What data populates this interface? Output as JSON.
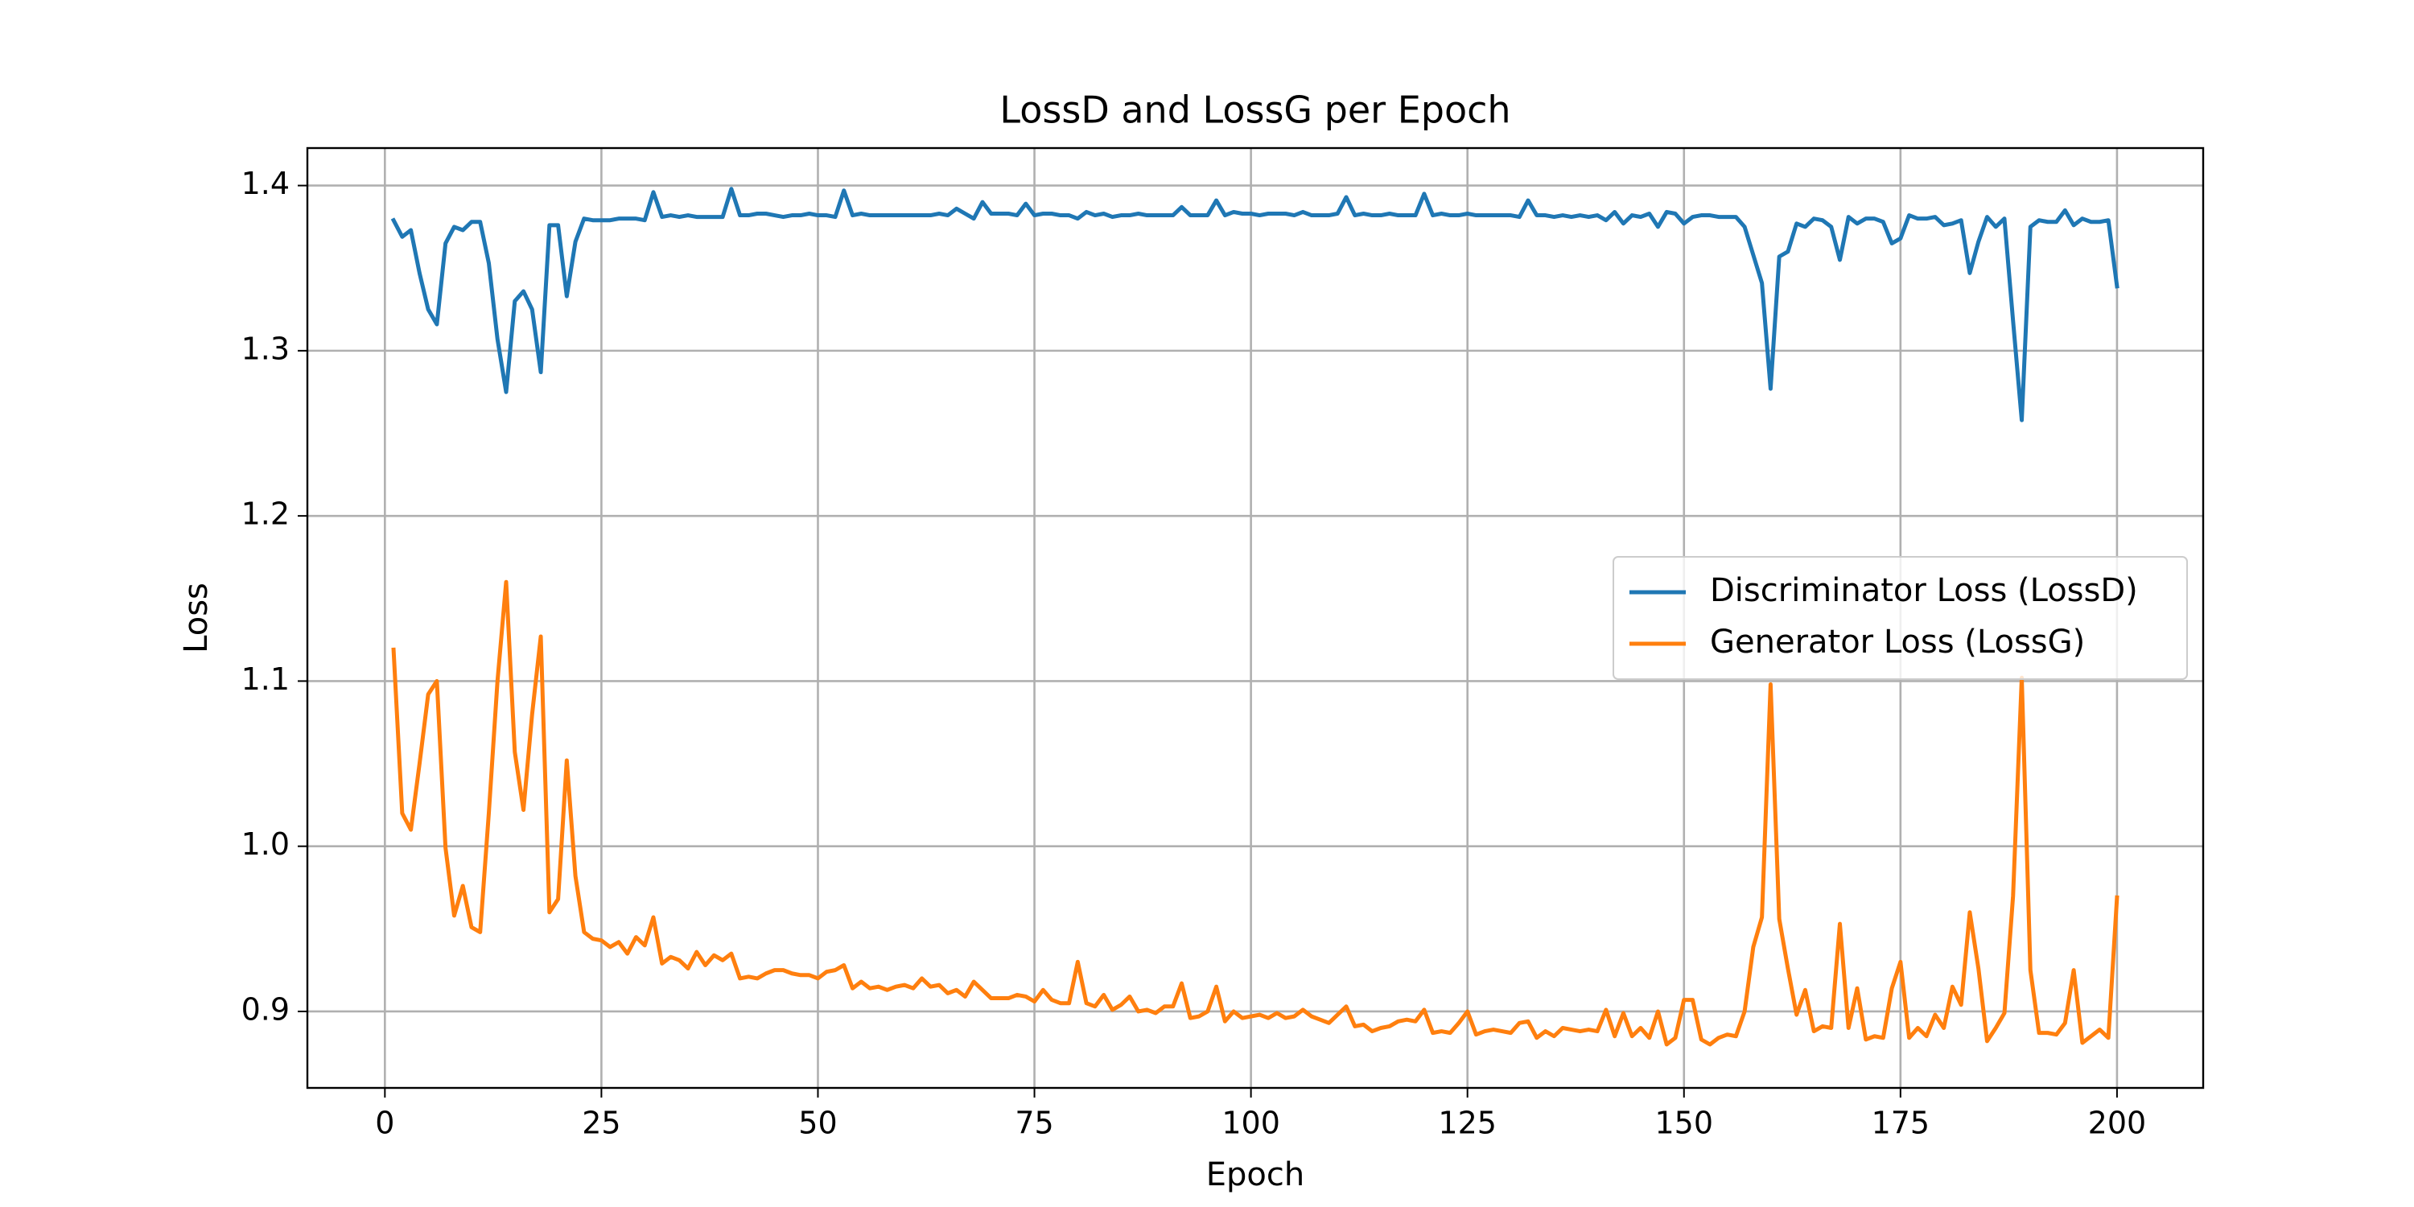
{
  "chart_data": {
    "type": "line",
    "title": "LossD and LossG per Epoch",
    "x_label": "Epoch",
    "y_label": "Loss",
    "xlim": [
      -8.95,
      209.95
    ],
    "ylim": [
      0.8537,
      1.4227
    ],
    "xticks": [
      0,
      25,
      50,
      75,
      100,
      125,
      150,
      175,
      200
    ],
    "yticks": [
      {
        "value": 0.9,
        "label": "0.9"
      },
      {
        "value": 1.0,
        "label": "1.0"
      },
      {
        "value": 1.1,
        "label": "1.1"
      },
      {
        "value": 1.2,
        "label": "1.2"
      },
      {
        "value": 1.3,
        "label": "1.3"
      },
      {
        "value": 1.4,
        "label": "1.4"
      }
    ],
    "grid": true,
    "legend": "center right",
    "x": [
      1,
      2,
      3,
      4,
      5,
      6,
      7,
      8,
      9,
      10,
      11,
      12,
      13,
      14,
      15,
      16,
      17,
      18,
      19,
      20,
      21,
      22,
      23,
      24,
      25,
      26,
      27,
      28,
      29,
      30,
      31,
      32,
      33,
      34,
      35,
      36,
      37,
      38,
      39,
      40,
      41,
      42,
      43,
      44,
      45,
      46,
      47,
      48,
      49,
      50,
      51,
      52,
      53,
      54,
      55,
      56,
      57,
      58,
      59,
      60,
      61,
      62,
      63,
      64,
      65,
      66,
      67,
      68,
      69,
      70,
      71,
      72,
      73,
      74,
      75,
      76,
      77,
      78,
      79,
      80,
      81,
      82,
      83,
      84,
      85,
      86,
      87,
      88,
      89,
      90,
      91,
      92,
      93,
      94,
      95,
      96,
      97,
      98,
      99,
      100,
      101,
      102,
      103,
      104,
      105,
      106,
      107,
      108,
      109,
      110,
      111,
      112,
      113,
      114,
      115,
      116,
      117,
      118,
      119,
      120,
      121,
      122,
      123,
      124,
      125,
      126,
      127,
      128,
      129,
      130,
      131,
      132,
      133,
      134,
      135,
      136,
      137,
      138,
      139,
      140,
      141,
      142,
      143,
      144,
      145,
      146,
      147,
      148,
      149,
      150,
      151,
      152,
      153,
      154,
      155,
      156,
      157,
      158,
      159,
      160,
      161,
      162,
      163,
      164,
      165,
      166,
      167,
      168,
      169,
      170,
      171,
      172,
      173,
      174,
      175,
      176,
      177,
      178,
      179,
      180,
      181,
      182,
      183,
      184,
      185,
      186,
      187,
      188,
      189,
      190,
      191,
      192,
      193,
      194,
      195,
      196,
      197,
      198,
      199,
      200
    ],
    "series": [
      {
        "name": "Discriminator Loss (LossD)",
        "color": "#1f77b4",
        "values": [
          1.379,
          1.369,
          1.373,
          1.347,
          1.325,
          1.316,
          1.365,
          1.375,
          1.373,
          1.378,
          1.378,
          1.353,
          1.307,
          1.275,
          1.33,
          1.336,
          1.325,
          1.287,
          1.376,
          1.376,
          1.333,
          1.366,
          1.38,
          1.379,
          1.379,
          1.379,
          1.38,
          1.38,
          1.38,
          1.379,
          1.396,
          1.381,
          1.382,
          1.381,
          1.382,
          1.381,
          1.381,
          1.381,
          1.381,
          1.398,
          1.382,
          1.382,
          1.383,
          1.383,
          1.382,
          1.381,
          1.382,
          1.382,
          1.383,
          1.382,
          1.382,
          1.381,
          1.397,
          1.382,
          1.383,
          1.382,
          1.382,
          1.382,
          1.382,
          1.382,
          1.382,
          1.382,
          1.382,
          1.383,
          1.382,
          1.386,
          1.383,
          1.38,
          1.39,
          1.383,
          1.383,
          1.383,
          1.382,
          1.389,
          1.382,
          1.383,
          1.383,
          1.382,
          1.382,
          1.38,
          1.384,
          1.382,
          1.383,
          1.381,
          1.382,
          1.382,
          1.383,
          1.382,
          1.382,
          1.382,
          1.382,
          1.387,
          1.382,
          1.382,
          1.382,
          1.391,
          1.382,
          1.384,
          1.383,
          1.383,
          1.382,
          1.383,
          1.383,
          1.383,
          1.382,
          1.384,
          1.382,
          1.382,
          1.382,
          1.383,
          1.393,
          1.382,
          1.383,
          1.382,
          1.382,
          1.383,
          1.382,
          1.382,
          1.382,
          1.395,
          1.382,
          1.383,
          1.382,
          1.382,
          1.383,
          1.382,
          1.382,
          1.382,
          1.382,
          1.382,
          1.381,
          1.391,
          1.382,
          1.382,
          1.381,
          1.382,
          1.381,
          1.382,
          1.381,
          1.382,
          1.379,
          1.384,
          1.377,
          1.382,
          1.381,
          1.383,
          1.375,
          1.384,
          1.383,
          1.377,
          1.381,
          1.382,
          1.382,
          1.381,
          1.381,
          1.381,
          1.375,
          1.358,
          1.341,
          1.277,
          1.357,
          1.36,
          1.377,
          1.375,
          1.38,
          1.379,
          1.375,
          1.355,
          1.381,
          1.377,
          1.38,
          1.38,
          1.378,
          1.365,
          1.368,
          1.382,
          1.38,
          1.38,
          1.381,
          1.376,
          1.377,
          1.379,
          1.347,
          1.366,
          1.381,
          1.375,
          1.38,
          1.318,
          1.258,
          1.375,
          1.379,
          1.378,
          1.378,
          1.385,
          1.376,
          1.38,
          1.378,
          1.378,
          1.379,
          1.339
        ]
      },
      {
        "name": "Generator Loss (LossG)",
        "color": "#ff7f0e",
        "values": [
          1.119,
          1.02,
          1.01,
          1.05,
          1.092,
          1.1,
          0.999,
          0.958,
          0.976,
          0.951,
          0.948,
          1.02,
          1.1,
          1.16,
          1.057,
          1.022,
          1.08,
          1.127,
          0.96,
          0.968,
          1.052,
          0.982,
          0.948,
          0.944,
          0.943,
          0.939,
          0.942,
          0.935,
          0.945,
          0.94,
          0.957,
          0.929,
          0.933,
          0.931,
          0.926,
          0.936,
          0.928,
          0.934,
          0.931,
          0.935,
          0.92,
          0.921,
          0.92,
          0.923,
          0.925,
          0.925,
          0.923,
          0.922,
          0.922,
          0.92,
          0.924,
          0.925,
          0.928,
          0.914,
          0.918,
          0.914,
          0.915,
          0.913,
          0.915,
          0.916,
          0.914,
          0.92,
          0.915,
          0.916,
          0.911,
          0.913,
          0.909,
          0.918,
          0.913,
          0.908,
          0.908,
          0.908,
          0.91,
          0.909,
          0.906,
          0.913,
          0.907,
          0.905,
          0.905,
          0.93,
          0.905,
          0.903,
          0.91,
          0.901,
          0.904,
          0.909,
          0.9,
          0.901,
          0.899,
          0.903,
          0.903,
          0.917,
          0.896,
          0.897,
          0.9,
          0.915,
          0.894,
          0.9,
          0.896,
          0.897,
          0.898,
          0.896,
          0.899,
          0.896,
          0.897,
          0.901,
          0.897,
          0.895,
          0.893,
          0.898,
          0.903,
          0.891,
          0.892,
          0.888,
          0.89,
          0.891,
          0.894,
          0.895,
          0.894,
          0.901,
          0.887,
          0.888,
          0.887,
          0.893,
          0.9,
          0.886,
          0.888,
          0.889,
          0.888,
          0.887,
          0.893,
          0.894,
          0.884,
          0.888,
          0.885,
          0.89,
          0.889,
          0.888,
          0.889,
          0.888,
          0.901,
          0.885,
          0.899,
          0.885,
          0.89,
          0.884,
          0.9,
          0.88,
          0.884,
          0.907,
          0.907,
          0.883,
          0.88,
          0.884,
          0.886,
          0.885,
          0.9,
          0.939,
          0.957,
          1.098,
          0.956,
          0.926,
          0.898,
          0.913,
          0.888,
          0.891,
          0.89,
          0.953,
          0.89,
          0.914,
          0.883,
          0.885,
          0.884,
          0.914,
          0.93,
          0.884,
          0.89,
          0.885,
          0.898,
          0.89,
          0.915,
          0.904,
          0.96,
          0.926,
          0.882,
          0.89,
          0.899,
          0.97,
          1.102,
          0.925,
          0.887,
          0.887,
          0.886,
          0.893,
          0.925,
          0.881,
          0.885,
          0.889,
          0.884,
          0.969
        ]
      }
    ]
  }
}
